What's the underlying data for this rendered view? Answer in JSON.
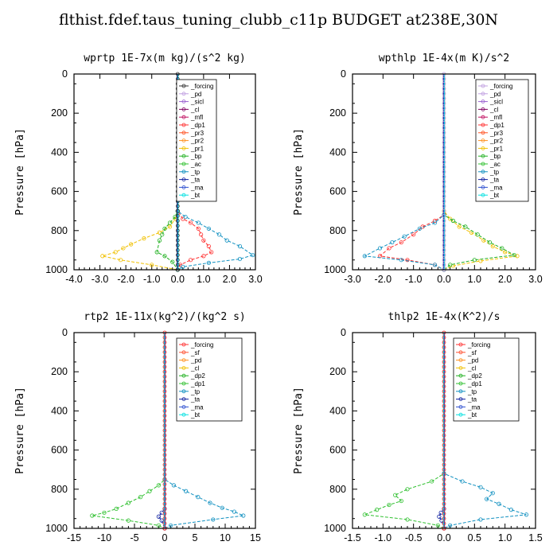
{
  "figure_title": "flthist.fdef.taus_tuning_clubb_c11p  BUDGET at238E,30N",
  "chart_data": [
    {
      "type": "line",
      "title": "wprtp  1E-7x(m kg)/(s^2 kg)",
      "ylabel": "Pressure [hPa]",
      "xlim": [
        -4.0,
        3.0
      ],
      "ylim": [
        1000,
        0
      ],
      "xticks": [
        "-4.0",
        "-3.0",
        "-2.0",
        "-1.0",
        "0.0",
        "1.0",
        "2.0",
        "3.0"
      ],
      "yticks": [
        "0",
        "200",
        "400",
        "600",
        "800",
        "1000"
      ],
      "legend": [
        {
          "label": "_forcing",
          "color": "#333333",
          "marker": "o"
        },
        {
          "label": "_pd",
          "color": "#c0a0e0",
          "marker": "o"
        },
        {
          "label": "_sicl",
          "color": "#9a60d0",
          "marker": "o"
        },
        {
          "label": "_cl",
          "color": "#800060",
          "marker": "o"
        },
        {
          "label": "_mfl",
          "color": "#c01060",
          "marker": "o"
        },
        {
          "label": "_dp1",
          "color": "#ff3030",
          "marker": "o"
        },
        {
          "label": "_pr3",
          "color": "#ff5020",
          "marker": "o"
        },
        {
          "label": "_pr2",
          "color": "#ff9020",
          "marker": "o"
        },
        {
          "label": "_pr1",
          "color": "#f0c000",
          "marker": "o"
        },
        {
          "label": "_bp",
          "color": "#20b020",
          "marker": "x"
        },
        {
          "label": "_ac",
          "color": "#30c030",
          "marker": "o"
        },
        {
          "label": "_tp",
          "color": "#1090c0",
          "marker": "x"
        },
        {
          "label": "_ta",
          "color": "#1020a0",
          "marker": "+"
        },
        {
          "label": "_ma",
          "color": "#3050d0",
          "marker": "-"
        },
        {
          "label": "_bt",
          "color": "#00e0e0",
          "marker": "o"
        }
      ],
      "series": [
        {
          "name": "_pr1",
          "color": "#f0c000",
          "x": [
            0,
            0,
            -0.1,
            -0.3,
            -0.7,
            -1.3,
            -1.8,
            -2.1,
            -2.4,
            -2.9,
            -2.2,
            -1.0,
            0
          ],
          "y": [
            0,
            700,
            740,
            780,
            810,
            840,
            870,
            890,
            910,
            930,
            950,
            975,
            1000
          ]
        },
        {
          "name": "_dp1",
          "color": "#ff3030",
          "x": [
            0,
            0,
            0.2,
            0.5,
            0.8,
            0.9,
            1.0,
            1.2,
            1.3,
            1.0,
            0.5,
            0.1,
            0
          ],
          "y": [
            0,
            700,
            740,
            760,
            790,
            820,
            850,
            880,
            910,
            930,
            950,
            975,
            1000
          ]
        },
        {
          "name": "_bp",
          "color": "#20b020",
          "x": [
            0,
            0,
            -0.1,
            -0.3,
            -0.5,
            -0.6,
            -0.7,
            -0.8,
            -0.5,
            -0.2,
            0
          ],
          "y": [
            0,
            700,
            730,
            760,
            790,
            820,
            850,
            910,
            930,
            960,
            1000
          ]
        },
        {
          "name": "_tp",
          "color": "#1090c0",
          "x": [
            0,
            0,
            0.3,
            0.8,
            1.2,
            1.6,
            1.9,
            2.4,
            2.9,
            2.4,
            1.2,
            0.2,
            0
          ],
          "y": [
            0,
            700,
            730,
            760,
            790,
            820,
            850,
            880,
            925,
            945,
            965,
            985,
            1000
          ]
        }
      ]
    },
    {
      "type": "line",
      "title": "wpthlp  1E-4x(m K)/s^2",
      "ylabel": "Pressure [hPa]",
      "xlim": [
        -3.0,
        3.0
      ],
      "ylim": [
        1000,
        0
      ],
      "xticks": [
        "-3.0",
        "-2.0",
        "-1.0",
        "0.0",
        "1.0",
        "2.0",
        "3.0"
      ],
      "yticks": [
        "0",
        "200",
        "400",
        "600",
        "800",
        "1000"
      ],
      "legend": [
        {
          "label": "_forcing",
          "color": "#c0a0e0",
          "marker": "o"
        },
        {
          "label": "_pd",
          "color": "#c0a0e0",
          "marker": "o"
        },
        {
          "label": "_sicl",
          "color": "#9a60d0",
          "marker": "o"
        },
        {
          "label": "_cl",
          "color": "#800060",
          "marker": "o"
        },
        {
          "label": "_mfl",
          "color": "#c01060",
          "marker": "o"
        },
        {
          "label": "_dp1",
          "color": "#ff3030",
          "marker": "o"
        },
        {
          "label": "_pr3",
          "color": "#ff5020",
          "marker": "o"
        },
        {
          "label": "_pr2",
          "color": "#ff9020",
          "marker": "o"
        },
        {
          "label": "_pr1",
          "color": "#f0c000",
          "marker": "o"
        },
        {
          "label": "_bp",
          "color": "#20b020",
          "marker": "x"
        },
        {
          "label": "_ac",
          "color": "#30c030",
          "marker": "o"
        },
        {
          "label": "_tp",
          "color": "#1090c0",
          "marker": "x"
        },
        {
          "label": "_ta",
          "color": "#1020a0",
          "marker": "+"
        },
        {
          "label": "_ma",
          "color": "#3050d0",
          "marker": "-"
        },
        {
          "label": "_bt",
          "color": "#00e0e0",
          "marker": "o"
        }
      ],
      "series": [
        {
          "name": "_pr1",
          "color": "#f0c000",
          "x": [
            0,
            0,
            0.2,
            0.5,
            0.9,
            1.3,
            1.6,
            2.0,
            2.4,
            1.2,
            0.3,
            0
          ],
          "y": [
            0,
            700,
            740,
            780,
            810,
            850,
            880,
            910,
            930,
            955,
            980,
            1000
          ]
        },
        {
          "name": "_bp",
          "color": "#20b020",
          "x": [
            0,
            0,
            0.3,
            0.7,
            1.1,
            1.5,
            1.9,
            2.3,
            1.0,
            0.2,
            0
          ],
          "y": [
            0,
            720,
            750,
            780,
            820,
            860,
            890,
            925,
            950,
            975,
            1000
          ]
        },
        {
          "name": "_dp1",
          "color": "#ff3030",
          "x": [
            0,
            0,
            -0.3,
            -0.7,
            -1.0,
            -1.4,
            -1.8,
            -2.1,
            -1.2,
            -0.3,
            0
          ],
          "y": [
            0,
            720,
            750,
            780,
            820,
            860,
            890,
            930,
            950,
            975,
            1000
          ]
        },
        {
          "name": "_tp",
          "color": "#1090c0",
          "x": [
            0,
            0,
            -0.3,
            -0.8,
            -1.3,
            -1.7,
            -2.1,
            -2.6,
            -1.4,
            -0.3,
            0
          ],
          "y": [
            0,
            720,
            760,
            790,
            830,
            860,
            890,
            930,
            950,
            975,
            1000
          ]
        }
      ]
    },
    {
      "type": "line",
      "title": "rtp2  1E-11x(kg^2)/(kg^2 s)",
      "ylabel": "Pressure [hPa]",
      "xlim": [
        -15,
        15
      ],
      "ylim": [
        1000,
        0
      ],
      "xticks": [
        "-15",
        "-10",
        "-5",
        "0",
        "5",
        "10",
        "15"
      ],
      "yticks": [
        "0",
        "200",
        "400",
        "600",
        "800",
        "1000"
      ],
      "legend": [
        {
          "label": "_forcing",
          "color": "#ff3030",
          "marker": "o"
        },
        {
          "label": "_sf",
          "color": "#ff5030",
          "marker": "o"
        },
        {
          "label": "_pd",
          "color": "#ff9020",
          "marker": "o"
        },
        {
          "label": "_cl",
          "color": "#f0c000",
          "marker": "o"
        },
        {
          "label": "_dp2",
          "color": "#20b020",
          "marker": "x"
        },
        {
          "label": "_dp1",
          "color": "#30c030",
          "marker": "o"
        },
        {
          "label": "_tp",
          "color": "#1090c0",
          "marker": "x"
        },
        {
          "label": "_ta",
          "color": "#1020a0",
          "marker": "+"
        },
        {
          "label": "_ma",
          "color": "#3050d0",
          "marker": "-"
        },
        {
          "label": "_bt",
          "color": "#00e0e0",
          "marker": "o"
        }
      ],
      "series": [
        {
          "name": "_dp1",
          "color": "#30c030",
          "x": [
            0,
            0,
            -1,
            -2.5,
            -4,
            -6,
            -8,
            -10,
            -12,
            -6,
            -1,
            0
          ],
          "y": [
            0,
            750,
            780,
            810,
            840,
            870,
            900,
            920,
            935,
            960,
            985,
            1000
          ]
        },
        {
          "name": "_tp",
          "color": "#1090c0",
          "x": [
            0,
            0,
            1.5,
            3.5,
            5.5,
            7.5,
            9.5,
            11.5,
            13,
            8,
            1,
            0
          ],
          "y": [
            0,
            750,
            780,
            810,
            840,
            870,
            895,
            915,
            935,
            955,
            985,
            1000
          ]
        },
        {
          "name": "_ta",
          "color": "#1020a0",
          "x": [
            0,
            0,
            -0.5,
            -1.0,
            -0.5,
            0
          ],
          "y": [
            0,
            900,
            920,
            940,
            960,
            1000
          ]
        },
        {
          "name": "_forcing",
          "color": "#ff3030",
          "x": [
            0,
            0
          ],
          "y": [
            0,
            1000
          ]
        }
      ]
    },
    {
      "type": "line",
      "title": "thlp2  1E-4x(K^2)/s",
      "ylabel": "Pressure [hPa]",
      "xlim": [
        -1.5,
        1.5
      ],
      "ylim": [
        1000,
        0
      ],
      "xticks": [
        "-1.5",
        "-1.0",
        "-0.5",
        "0.0",
        "0.5",
        "1.0",
        "1.5"
      ],
      "yticks": [
        "0",
        "200",
        "400",
        "600",
        "800",
        "1000"
      ],
      "legend": [
        {
          "label": "_forcing",
          "color": "#ff3030",
          "marker": "o"
        },
        {
          "label": "_sf",
          "color": "#ff5030",
          "marker": "o"
        },
        {
          "label": "_pd",
          "color": "#ff9020",
          "marker": "o"
        },
        {
          "label": "_cl",
          "color": "#f0c000",
          "marker": "o"
        },
        {
          "label": "_dp2",
          "color": "#20b020",
          "marker": "x"
        },
        {
          "label": "_dp1",
          "color": "#30c030",
          "marker": "o"
        },
        {
          "label": "_tp",
          "color": "#1090c0",
          "marker": "x"
        },
        {
          "label": "_ta",
          "color": "#1020a0",
          "marker": "+"
        },
        {
          "label": "_ma",
          "color": "#3050d0",
          "marker": "-"
        },
        {
          "label": "_bt",
          "color": "#00e0e0",
          "marker": "o"
        }
      ],
      "series": [
        {
          "name": "_dp1",
          "color": "#30c030",
          "x": [
            0,
            0,
            -0.2,
            -0.6,
            -0.8,
            -0.7,
            -0.9,
            -1.1,
            -1.3,
            -0.6,
            -0.1,
            0
          ],
          "y": [
            0,
            720,
            760,
            800,
            830,
            860,
            880,
            905,
            930,
            955,
            985,
            1000
          ]
        },
        {
          "name": "_tp",
          "color": "#1090c0",
          "x": [
            0,
            0,
            0.3,
            0.6,
            0.8,
            0.7,
            0.9,
            1.1,
            1.35,
            0.6,
            0.1,
            0
          ],
          "y": [
            0,
            720,
            760,
            790,
            820,
            850,
            875,
            905,
            930,
            955,
            985,
            1000
          ]
        },
        {
          "name": "_ta",
          "color": "#1020a0",
          "x": [
            0,
            0,
            -0.05,
            -0.08,
            -0.04,
            0
          ],
          "y": [
            0,
            900,
            920,
            940,
            960,
            1000
          ]
        },
        {
          "name": "_forcing",
          "color": "#ff3030",
          "x": [
            0,
            0
          ],
          "y": [
            0,
            1000
          ]
        }
      ]
    }
  ]
}
